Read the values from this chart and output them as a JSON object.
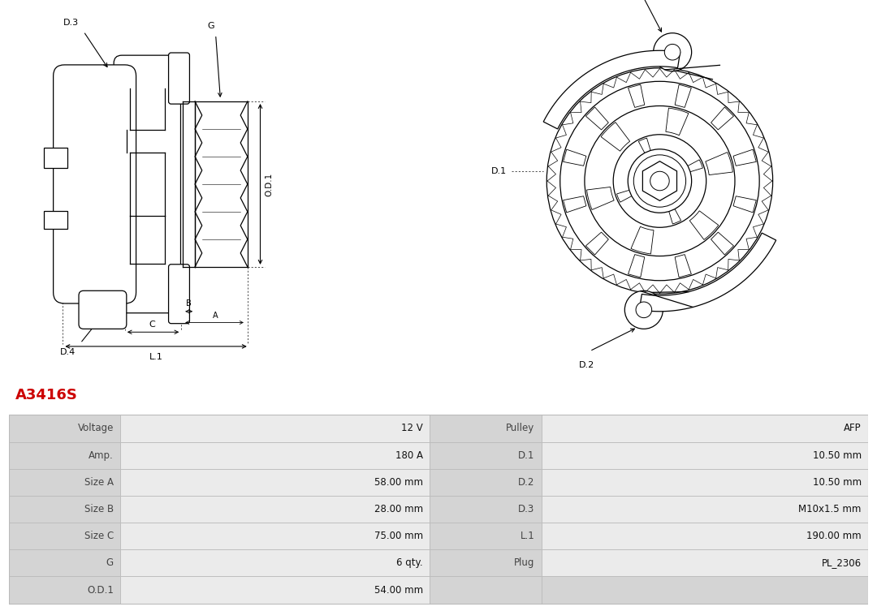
{
  "title": "A3416S",
  "title_color": "#cc0000",
  "bg_color": "#ffffff",
  "table_data": [
    [
      "Voltage",
      "12 V",
      "Pulley",
      "AFP"
    ],
    [
      "Amp.",
      "180 A",
      "D.1",
      "10.50 mm"
    ],
    [
      "Size A",
      "58.00 mm",
      "D.2",
      "10.50 mm"
    ],
    [
      "Size B",
      "28.00 mm",
      "D.3",
      "M10x1.5 mm"
    ],
    [
      "Size C",
      "75.00 mm",
      "L.1",
      "190.00 mm"
    ],
    [
      "G",
      "6 qty.",
      "Plug",
      "PL_2306"
    ],
    [
      "O.D.1",
      "54.00 mm",
      "",
      ""
    ]
  ],
  "table_label_bg": "#d4d4d4",
  "table_value_bg": "#ebebeb",
  "table_border_color": "#bbbbbb",
  "label_color": "#444444",
  "value_color": "#111111"
}
